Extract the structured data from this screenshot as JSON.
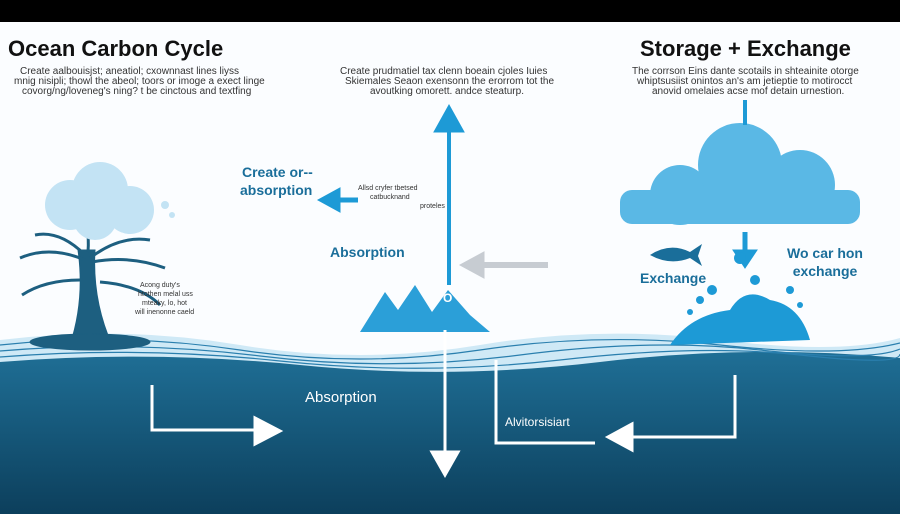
{
  "left": {
    "title": "Ocean Carbon Cycle",
    "body": [
      "Create aalbouisjst; aneatiol; cxownnast lines liyss",
      "mnig nisipli; thowl the abeol; toors or imoge a exect linge",
      "covorg/ng/loveneg's ning? t be cinctous and textfing"
    ],
    "tree_note": [
      "Acong duty's",
      "htothen melal uss",
      "mteaky, lo, hot",
      "will inenonne caeld"
    ]
  },
  "center": {
    "body": [
      "Create prudmatiel tax clenn boeain cjoles Iuies",
      "Skiemales Seaon exensonn the erorrom tot the",
      "avoutking omorett. andce steaturp."
    ],
    "create_label": [
      "Create or--",
      "absorption"
    ],
    "small_note": [
      "Allsd cryfer tbetsed",
      "catbucknand",
      "proteles"
    ],
    "absorption": "Absorption",
    "marker": "O"
  },
  "right": {
    "title": "Storage + Exchange",
    "body": [
      "The corrson Eins dante scotails in shteainite otorge",
      "whiptsusiist onintos an's am jetieptie to motirocct",
      "anovid omelaies acse mof detain urnestion."
    ],
    "exchange": "Exchange",
    "exchange_note": [
      "Wo car hon",
      "exchange"
    ]
  },
  "ocean": {
    "absorption": "Absorption",
    "label": "Alvitorsisiart"
  }
}
